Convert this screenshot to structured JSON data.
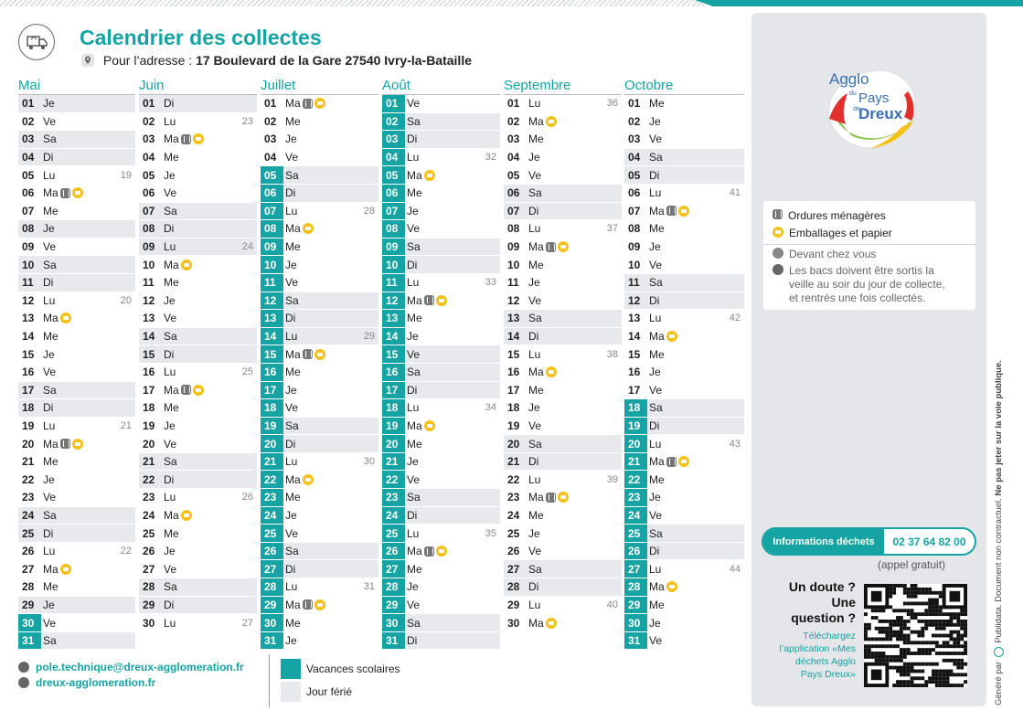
{
  "header": {
    "title": "Calendrier des collectes",
    "address_label": "Pour l’adresse :",
    "address": "17 Boulevard de la Gare 27540 Ivry-la-Bataille"
  },
  "colors": {
    "accent": "#15a3a3",
    "holiday": "#e8e9ec",
    "paper": "#f3c11a",
    "bin": "#777777"
  },
  "calendar": [
    {
      "month": "Mai",
      "days": [
        {
          "n": "01",
          "d": "Je",
          "h": true
        },
        {
          "n": "02",
          "d": "Ve"
        },
        {
          "n": "03",
          "d": "Sa",
          "h": true
        },
        {
          "n": "04",
          "d": "Di",
          "h": true
        },
        {
          "n": "05",
          "d": "Lu",
          "w": "19"
        },
        {
          "n": "06",
          "d": "Ma",
          "i": [
            "bin",
            "pap"
          ]
        },
        {
          "n": "07",
          "d": "Me"
        },
        {
          "n": "08",
          "d": "Je",
          "h": true
        },
        {
          "n": "09",
          "d": "Ve"
        },
        {
          "n": "10",
          "d": "Sa",
          "h": true
        },
        {
          "n": "11",
          "d": "Di",
          "h": true
        },
        {
          "n": "12",
          "d": "Lu",
          "w": "20"
        },
        {
          "n": "13",
          "d": "Ma",
          "i": [
            "pap"
          ]
        },
        {
          "n": "14",
          "d": "Me"
        },
        {
          "n": "15",
          "d": "Je"
        },
        {
          "n": "16",
          "d": "Ve"
        },
        {
          "n": "17",
          "d": "Sa",
          "h": true
        },
        {
          "n": "18",
          "d": "Di",
          "h": true
        },
        {
          "n": "19",
          "d": "Lu",
          "w": "21"
        },
        {
          "n": "20",
          "d": "Ma",
          "i": [
            "bin",
            "pap"
          ]
        },
        {
          "n": "21",
          "d": "Me"
        },
        {
          "n": "22",
          "d": "Je"
        },
        {
          "n": "23",
          "d": "Ve"
        },
        {
          "n": "24",
          "d": "Sa",
          "h": true
        },
        {
          "n": "25",
          "d": "Di",
          "h": true
        },
        {
          "n": "26",
          "d": "Lu",
          "w": "22"
        },
        {
          "n": "27",
          "d": "Ma",
          "i": [
            "pap"
          ]
        },
        {
          "n": "28",
          "d": "Me"
        },
        {
          "n": "29",
          "d": "Je",
          "h": true
        },
        {
          "n": "30",
          "d": "Ve",
          "v": true
        },
        {
          "n": "31",
          "d": "Sa",
          "v": true,
          "h": true
        }
      ]
    },
    {
      "month": "Juin",
      "days": [
        {
          "n": "01",
          "d": "Di",
          "h": true
        },
        {
          "n": "02",
          "d": "Lu",
          "w": "23"
        },
        {
          "n": "03",
          "d": "Ma",
          "i": [
            "bin",
            "pap"
          ]
        },
        {
          "n": "04",
          "d": "Me"
        },
        {
          "n": "05",
          "d": "Je"
        },
        {
          "n": "06",
          "d": "Ve"
        },
        {
          "n": "07",
          "d": "Sa",
          "h": true
        },
        {
          "n": "08",
          "d": "Di",
          "h": true
        },
        {
          "n": "09",
          "d": "Lu",
          "w": "24",
          "h": true
        },
        {
          "n": "10",
          "d": "Ma",
          "i": [
            "pap"
          ]
        },
        {
          "n": "11",
          "d": "Me"
        },
        {
          "n": "12",
          "d": "Je"
        },
        {
          "n": "13",
          "d": "Ve"
        },
        {
          "n": "14",
          "d": "Sa",
          "h": true
        },
        {
          "n": "15",
          "d": "Di",
          "h": true
        },
        {
          "n": "16",
          "d": "Lu",
          "w": "25"
        },
        {
          "n": "17",
          "d": "Ma",
          "i": [
            "bin",
            "pap"
          ]
        },
        {
          "n": "18",
          "d": "Me"
        },
        {
          "n": "19",
          "d": "Je"
        },
        {
          "n": "20",
          "d": "Ve"
        },
        {
          "n": "21",
          "d": "Sa",
          "h": true
        },
        {
          "n": "22",
          "d": "Di",
          "h": true
        },
        {
          "n": "23",
          "d": "Lu",
          "w": "26"
        },
        {
          "n": "24",
          "d": "Ma",
          "i": [
            "pap"
          ]
        },
        {
          "n": "25",
          "d": "Me"
        },
        {
          "n": "26",
          "d": "Je"
        },
        {
          "n": "27",
          "d": "Ve"
        },
        {
          "n": "28",
          "d": "Sa",
          "h": true
        },
        {
          "n": "29",
          "d": "Di",
          "h": true
        },
        {
          "n": "30",
          "d": "Lu",
          "w": "27"
        }
      ]
    },
    {
      "month": "Juillet",
      "days": [
        {
          "n": "01",
          "d": "Ma",
          "i": [
            "bin",
            "pap"
          ]
        },
        {
          "n": "02",
          "d": "Me"
        },
        {
          "n": "03",
          "d": "Je"
        },
        {
          "n": "04",
          "d": "Ve"
        },
        {
          "n": "05",
          "d": "Sa",
          "v": true,
          "h": true
        },
        {
          "n": "06",
          "d": "Di",
          "v": true,
          "h": true
        },
        {
          "n": "07",
          "d": "Lu",
          "w": "28",
          "v": true
        },
        {
          "n": "08",
          "d": "Ma",
          "v": true,
          "i": [
            "pap"
          ]
        },
        {
          "n": "09",
          "d": "Me",
          "v": true
        },
        {
          "n": "10",
          "d": "Je",
          "v": true
        },
        {
          "n": "11",
          "d": "Ve",
          "v": true
        },
        {
          "n": "12",
          "d": "Sa",
          "v": true,
          "h": true
        },
        {
          "n": "13",
          "d": "Di",
          "v": true,
          "h": true
        },
        {
          "n": "14",
          "d": "Lu",
          "w": "29",
          "v": true,
          "h": true
        },
        {
          "n": "15",
          "d": "Ma",
          "v": true,
          "i": [
            "bin",
            "pap"
          ]
        },
        {
          "n": "16",
          "d": "Me",
          "v": true
        },
        {
          "n": "17",
          "d": "Je",
          "v": true
        },
        {
          "n": "18",
          "d": "Ve",
          "v": true
        },
        {
          "n": "19",
          "d": "Sa",
          "v": true,
          "h": true
        },
        {
          "n": "20",
          "d": "Di",
          "v": true,
          "h": true
        },
        {
          "n": "21",
          "d": "Lu",
          "w": "30",
          "v": true
        },
        {
          "n": "22",
          "d": "Ma",
          "v": true,
          "i": [
            "pap"
          ]
        },
        {
          "n": "23",
          "d": "Me",
          "v": true
        },
        {
          "n": "24",
          "d": "Je",
          "v": true
        },
        {
          "n": "25",
          "d": "Ve",
          "v": true
        },
        {
          "n": "26",
          "d": "Sa",
          "v": true,
          "h": true
        },
        {
          "n": "27",
          "d": "Di",
          "v": true,
          "h": true
        },
        {
          "n": "28",
          "d": "Lu",
          "w": "31",
          "v": true
        },
        {
          "n": "29",
          "d": "Ma",
          "v": true,
          "i": [
            "bin",
            "pap"
          ]
        },
        {
          "n": "30",
          "d": "Me",
          "v": true
        },
        {
          "n": "31",
          "d": "Je",
          "v": true
        }
      ]
    },
    {
      "month": "Août",
      "days": [
        {
          "n": "01",
          "d": "Ve",
          "v": true
        },
        {
          "n": "02",
          "d": "Sa",
          "v": true,
          "h": true
        },
        {
          "n": "03",
          "d": "Di",
          "v": true,
          "h": true
        },
        {
          "n": "04",
          "d": "Lu",
          "w": "32",
          "v": true
        },
        {
          "n": "05",
          "d": "Ma",
          "v": true,
          "i": [
            "pap"
          ]
        },
        {
          "n": "06",
          "d": "Me",
          "v": true
        },
        {
          "n": "07",
          "d": "Je",
          "v": true
        },
        {
          "n": "08",
          "d": "Ve",
          "v": true
        },
        {
          "n": "09",
          "d": "Sa",
          "v": true,
          "h": true
        },
        {
          "n": "10",
          "d": "Di",
          "v": true,
          "h": true
        },
        {
          "n": "11",
          "d": "Lu",
          "w": "33",
          "v": true
        },
        {
          "n": "12",
          "d": "Ma",
          "v": true,
          "i": [
            "bin",
            "pap"
          ]
        },
        {
          "n": "13",
          "d": "Me",
          "v": true
        },
        {
          "n": "14",
          "d": "Je",
          "v": true
        },
        {
          "n": "15",
          "d": "Ve",
          "v": true,
          "h": true
        },
        {
          "n": "16",
          "d": "Sa",
          "v": true,
          "h": true
        },
        {
          "n": "17",
          "d": "Di",
          "v": true,
          "h": true
        },
        {
          "n": "18",
          "d": "Lu",
          "w": "34",
          "v": true
        },
        {
          "n": "19",
          "d": "Ma",
          "v": true,
          "i": [
            "pap"
          ]
        },
        {
          "n": "20",
          "d": "Me",
          "v": true
        },
        {
          "n": "21",
          "d": "Je",
          "v": true
        },
        {
          "n": "22",
          "d": "Ve",
          "v": true
        },
        {
          "n": "23",
          "d": "Sa",
          "v": true,
          "h": true
        },
        {
          "n": "24",
          "d": "Di",
          "v": true,
          "h": true
        },
        {
          "n": "25",
          "d": "Lu",
          "w": "35",
          "v": true
        },
        {
          "n": "26",
          "d": "Ma",
          "v": true,
          "i": [
            "bin",
            "pap"
          ]
        },
        {
          "n": "27",
          "d": "Me",
          "v": true
        },
        {
          "n": "28",
          "d": "Je",
          "v": true
        },
        {
          "n": "29",
          "d": "Ve",
          "v": true
        },
        {
          "n": "30",
          "d": "Sa",
          "v": true,
          "h": true
        },
        {
          "n": "31",
          "d": "Di",
          "v": true,
          "h": true
        }
      ]
    },
    {
      "month": "Septembre",
      "days": [
        {
          "n": "01",
          "d": "Lu",
          "w": "36"
        },
        {
          "n": "02",
          "d": "Ma",
          "i": [
            "pap"
          ]
        },
        {
          "n": "03",
          "d": "Me"
        },
        {
          "n": "04",
          "d": "Je"
        },
        {
          "n": "05",
          "d": "Ve"
        },
        {
          "n": "06",
          "d": "Sa",
          "h": true
        },
        {
          "n": "07",
          "d": "Di",
          "h": true
        },
        {
          "n": "08",
          "d": "Lu",
          "w": "37"
        },
        {
          "n": "09",
          "d": "Ma",
          "i": [
            "bin",
            "pap"
          ]
        },
        {
          "n": "10",
          "d": "Me"
        },
        {
          "n": "11",
          "d": "Je"
        },
        {
          "n": "12",
          "d": "Ve"
        },
        {
          "n": "13",
          "d": "Sa",
          "h": true
        },
        {
          "n": "14",
          "d": "Di",
          "h": true
        },
        {
          "n": "15",
          "d": "Lu",
          "w": "38"
        },
        {
          "n": "16",
          "d": "Ma",
          "i": [
            "pap"
          ]
        },
        {
          "n": "17",
          "d": "Me"
        },
        {
          "n": "18",
          "d": "Je"
        },
        {
          "n": "19",
          "d": "Ve"
        },
        {
          "n": "20",
          "d": "Sa",
          "h": true
        },
        {
          "n": "21",
          "d": "Di",
          "h": true
        },
        {
          "n": "22",
          "d": "Lu",
          "w": "39"
        },
        {
          "n": "23",
          "d": "Ma",
          "i": [
            "bin",
            "pap"
          ]
        },
        {
          "n": "24",
          "d": "Me"
        },
        {
          "n": "25",
          "d": "Je"
        },
        {
          "n": "26",
          "d": "Ve"
        },
        {
          "n": "27",
          "d": "Sa",
          "h": true
        },
        {
          "n": "28",
          "d": "Di",
          "h": true
        },
        {
          "n": "29",
          "d": "Lu",
          "w": "40"
        },
        {
          "n": "30",
          "d": "Ma",
          "i": [
            "pap"
          ]
        }
      ]
    },
    {
      "month": "Octobre",
      "days": [
        {
          "n": "01",
          "d": "Me"
        },
        {
          "n": "02",
          "d": "Je"
        },
        {
          "n": "03",
          "d": "Ve"
        },
        {
          "n": "04",
          "d": "Sa",
          "h": true
        },
        {
          "n": "05",
          "d": "Di",
          "h": true
        },
        {
          "n": "06",
          "d": "Lu",
          "w": "41"
        },
        {
          "n": "07",
          "d": "Ma",
          "i": [
            "bin",
            "pap"
          ]
        },
        {
          "n": "08",
          "d": "Me"
        },
        {
          "n": "09",
          "d": "Je"
        },
        {
          "n": "10",
          "d": "Ve"
        },
        {
          "n": "11",
          "d": "Sa",
          "h": true
        },
        {
          "n": "12",
          "d": "Di",
          "h": true
        },
        {
          "n": "13",
          "d": "Lu",
          "w": "42"
        },
        {
          "n": "14",
          "d": "Ma",
          "i": [
            "pap"
          ]
        },
        {
          "n": "15",
          "d": "Me"
        },
        {
          "n": "16",
          "d": "Je"
        },
        {
          "n": "17",
          "d": "Ve"
        },
        {
          "n": "18",
          "d": "Sa",
          "v": true,
          "h": true
        },
        {
          "n": "19",
          "d": "Di",
          "v": true,
          "h": true
        },
        {
          "n": "20",
          "d": "Lu",
          "w": "43",
          "v": true
        },
        {
          "n": "21",
          "d": "Ma",
          "v": true,
          "i": [
            "bin",
            "pap"
          ]
        },
        {
          "n": "22",
          "d": "Me",
          "v": true
        },
        {
          "n": "23",
          "d": "Je",
          "v": true
        },
        {
          "n": "24",
          "d": "Ve",
          "v": true
        },
        {
          "n": "25",
          "d": "Sa",
          "v": true,
          "h": true
        },
        {
          "n": "26",
          "d": "Di",
          "v": true,
          "h": true
        },
        {
          "n": "27",
          "d": "Lu",
          "w": "44",
          "v": true
        },
        {
          "n": "28",
          "d": "Ma",
          "v": true,
          "i": [
            "pap"
          ]
        },
        {
          "n": "29",
          "d": "Me",
          "v": true
        },
        {
          "n": "30",
          "d": "Je",
          "v": true
        },
        {
          "n": "31",
          "d": "Ve",
          "v": true
        }
      ]
    }
  ],
  "legend": {
    "ordures": "Ordures ménagères",
    "emballages": "Emballages et papier",
    "devant": "Devant chez vous",
    "bacs_1": "Les bacs doivent être sortis la",
    "bacs_2": "veille au soir du jour de collecte,",
    "bacs_3": "et rentrés une fois collectés."
  },
  "logo": {
    "line1": "Agglo",
    "line2": "du",
    "line3": "Pays",
    "line4": "de",
    "line5": "Dreux"
  },
  "info": {
    "label": "Informations déchets",
    "phone": "02 37 64 82 00",
    "note": "(appel gratuit)"
  },
  "doute": {
    "line1": "Un doute ?",
    "line2": "Une",
    "line3": "question ?"
  },
  "download": {
    "line1": "Téléchargez",
    "line2": "l’application «Mes",
    "line3": "déchets Agglo",
    "line4": "Pays Dreux»"
  },
  "footer": {
    "email": "pole.technique@dreux-agglomeration.fr",
    "website": "dreux-agglomeration.fr",
    "vacances": "Vacances scolaires",
    "ferie": "Jour férié",
    "generated": "Généré par",
    "generated_brand": "Publidata",
    "disclaimer": ". Document non contractuel.",
    "warning": "Ne pas jeter sur la voie publique."
  }
}
